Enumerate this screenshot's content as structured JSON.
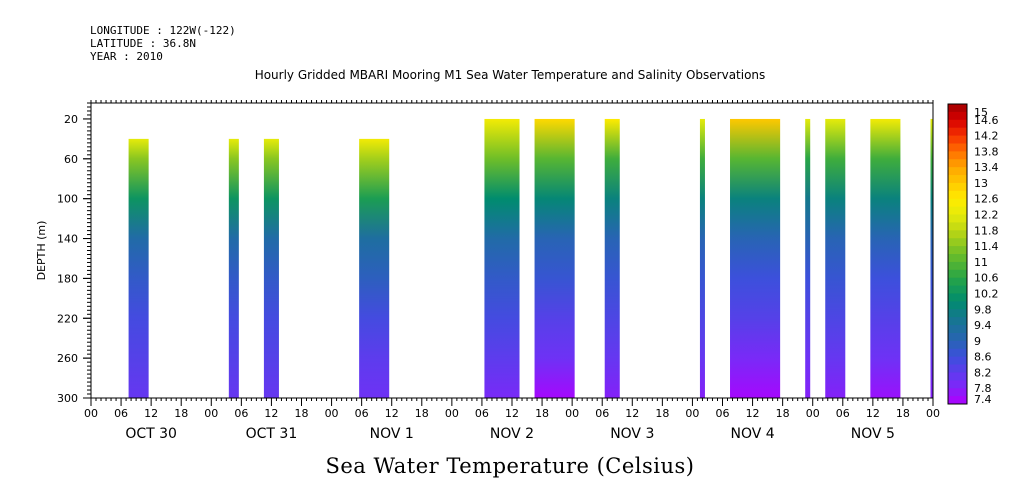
{
  "meta": {
    "longitude": "LONGITUDE : 122W(-122)",
    "latitude": "LATITUDE : 36.8N",
    "year": "YEAR : 2010"
  },
  "chart_data": {
    "type": "heatmap",
    "title": "Hourly Gridded MBARI Mooring M1 Sea Water Temperature and Salinity Observations",
    "subtitle": "Sea Water Temperature (Celsius)",
    "ylabel": "DEPTH (m)",
    "xlabel": "",
    "x_unit": "hours since Oct 30 00:00",
    "xlim": [
      0,
      168
    ],
    "ylim": [
      300,
      0
    ],
    "y_ticks": [
      20,
      60,
      100,
      140,
      180,
      220,
      260,
      300
    ],
    "x_tick_labels": [
      "00",
      "06",
      "12",
      "18",
      "00",
      "06",
      "12",
      "18",
      "00",
      "06",
      "12",
      "18",
      "00",
      "06",
      "12",
      "18",
      "00",
      "06",
      "12",
      "18",
      "00",
      "06",
      "12",
      "18",
      "00",
      "06",
      "12",
      "18",
      "00"
    ],
    "day_labels": [
      "OCT 30",
      "OCT 31",
      "NOV  1",
      "NOV  2",
      "NOV  3",
      "NOV  4",
      "NOV  5"
    ],
    "colorbar": {
      "min": 7.4,
      "max": 15,
      "step": 0.2,
      "labels": [
        "15",
        "14.6",
        "14.2",
        "13.8",
        "13.4",
        "13",
        "12.6",
        "12.2",
        "11.8",
        "11.4",
        "11",
        "10.6",
        "10.2",
        "9.8",
        "9.4",
        "9",
        "8.6",
        "8.2",
        "7.8",
        "7.4"
      ]
    },
    "segments": [
      {
        "x_start": 7.5,
        "x_end": 11.5,
        "top_depth": 40,
        "profile": [
          [
            40,
            12.2
          ],
          [
            60,
            11.4
          ],
          [
            100,
            10.2
          ],
          [
            140,
            9.2
          ],
          [
            180,
            8.8
          ],
          [
            220,
            8.5
          ],
          [
            260,
            8.3
          ],
          [
            300,
            8.1
          ]
        ]
      },
      {
        "x_start": 27.5,
        "x_end": 29.5,
        "top_depth": 40,
        "profile": [
          [
            40,
            12.2
          ],
          [
            60,
            11.4
          ],
          [
            100,
            10.2
          ],
          [
            140,
            9.2
          ],
          [
            180,
            8.8
          ],
          [
            220,
            8.5
          ],
          [
            260,
            8.3
          ],
          [
            300,
            8.1
          ]
        ]
      },
      {
        "x_start": 34.5,
        "x_end": 37.5,
        "top_depth": 40,
        "profile": [
          [
            40,
            12.2
          ],
          [
            60,
            11.4
          ],
          [
            100,
            10.2
          ],
          [
            140,
            9.2
          ],
          [
            180,
            8.8
          ],
          [
            220,
            8.5
          ],
          [
            260,
            8.3
          ],
          [
            300,
            8.1
          ]
        ]
      },
      {
        "x_start": 53.5,
        "x_end": 59.5,
        "top_depth": 40,
        "profile": [
          [
            40,
            12.4
          ],
          [
            60,
            11.6
          ],
          [
            100,
            10.4
          ],
          [
            140,
            9.3
          ],
          [
            180,
            8.9
          ],
          [
            220,
            8.5
          ],
          [
            260,
            8.2
          ],
          [
            300,
            8.0
          ]
        ]
      },
      {
        "x_start": 78.5,
        "x_end": 85.5,
        "top_depth": 20,
        "profile": [
          [
            20,
            12.4
          ],
          [
            60,
            11.2
          ],
          [
            100,
            10.0
          ],
          [
            140,
            9.2
          ],
          [
            180,
            8.8
          ],
          [
            220,
            8.5
          ],
          [
            260,
            8.2
          ],
          [
            300,
            7.9
          ]
        ]
      },
      {
        "x_start": 88.5,
        "x_end": 96.5,
        "top_depth": 20,
        "profile": [
          [
            20,
            12.8
          ],
          [
            60,
            11.0
          ],
          [
            100,
            9.9
          ],
          [
            140,
            9.0
          ],
          [
            180,
            8.7
          ],
          [
            220,
            8.3
          ],
          [
            260,
            8.0
          ],
          [
            300,
            7.5
          ]
        ]
      },
      {
        "x_start": 102.5,
        "x_end": 105.5,
        "top_depth": 20,
        "profile": [
          [
            20,
            12.6
          ],
          [
            60,
            10.8
          ],
          [
            100,
            9.8
          ],
          [
            140,
            9.0
          ],
          [
            180,
            8.7
          ],
          [
            220,
            8.4
          ],
          [
            260,
            8.1
          ],
          [
            300,
            7.8
          ]
        ]
      },
      {
        "x_start": 121.5,
        "x_end": 122.5,
        "top_depth": 20,
        "profile": [
          [
            20,
            12.2
          ],
          [
            60,
            10.8
          ],
          [
            100,
            9.8
          ],
          [
            140,
            9.0
          ],
          [
            180,
            8.7
          ],
          [
            220,
            8.4
          ],
          [
            260,
            8.1
          ],
          [
            300,
            7.8
          ]
        ]
      },
      {
        "x_start": 127.5,
        "x_end": 137.5,
        "top_depth": 20,
        "profile": [
          [
            20,
            13.0
          ],
          [
            60,
            11.0
          ],
          [
            100,
            9.8
          ],
          [
            140,
            9.0
          ],
          [
            180,
            8.6
          ],
          [
            220,
            8.3
          ],
          [
            260,
            7.9
          ],
          [
            300,
            7.5
          ]
        ]
      },
      {
        "x_start": 142.5,
        "x_end": 143.5,
        "top_depth": 20,
        "profile": [
          [
            20,
            12.2
          ],
          [
            60,
            10.6
          ],
          [
            100,
            9.6
          ],
          [
            140,
            9.0
          ],
          [
            180,
            8.6
          ],
          [
            220,
            8.3
          ],
          [
            260,
            8.0
          ],
          [
            300,
            7.8
          ]
        ]
      },
      {
        "x_start": 146.5,
        "x_end": 150.5,
        "top_depth": 20,
        "profile": [
          [
            20,
            12.2
          ],
          [
            60,
            10.8
          ],
          [
            100,
            9.8
          ],
          [
            140,
            9.0
          ],
          [
            180,
            8.7
          ],
          [
            220,
            8.4
          ],
          [
            260,
            8.1
          ],
          [
            300,
            7.8
          ]
        ]
      },
      {
        "x_start": 155.5,
        "x_end": 161.5,
        "top_depth": 20,
        "profile": [
          [
            20,
            12.4
          ],
          [
            60,
            10.8
          ],
          [
            100,
            9.8
          ],
          [
            140,
            9.0
          ],
          [
            180,
            8.6
          ],
          [
            220,
            8.3
          ],
          [
            260,
            8.0
          ],
          [
            300,
            7.6
          ]
        ]
      },
      {
        "x_start": 167.5,
        "x_end": 168,
        "top_depth": 20,
        "profile": [
          [
            20,
            12.2
          ],
          [
            60,
            10.8
          ],
          [
            100,
            9.8
          ],
          [
            140,
            9.0
          ],
          [
            180,
            8.7
          ],
          [
            220,
            8.4
          ],
          [
            260,
            8.1
          ],
          [
            300,
            7.8
          ]
        ]
      }
    ]
  }
}
